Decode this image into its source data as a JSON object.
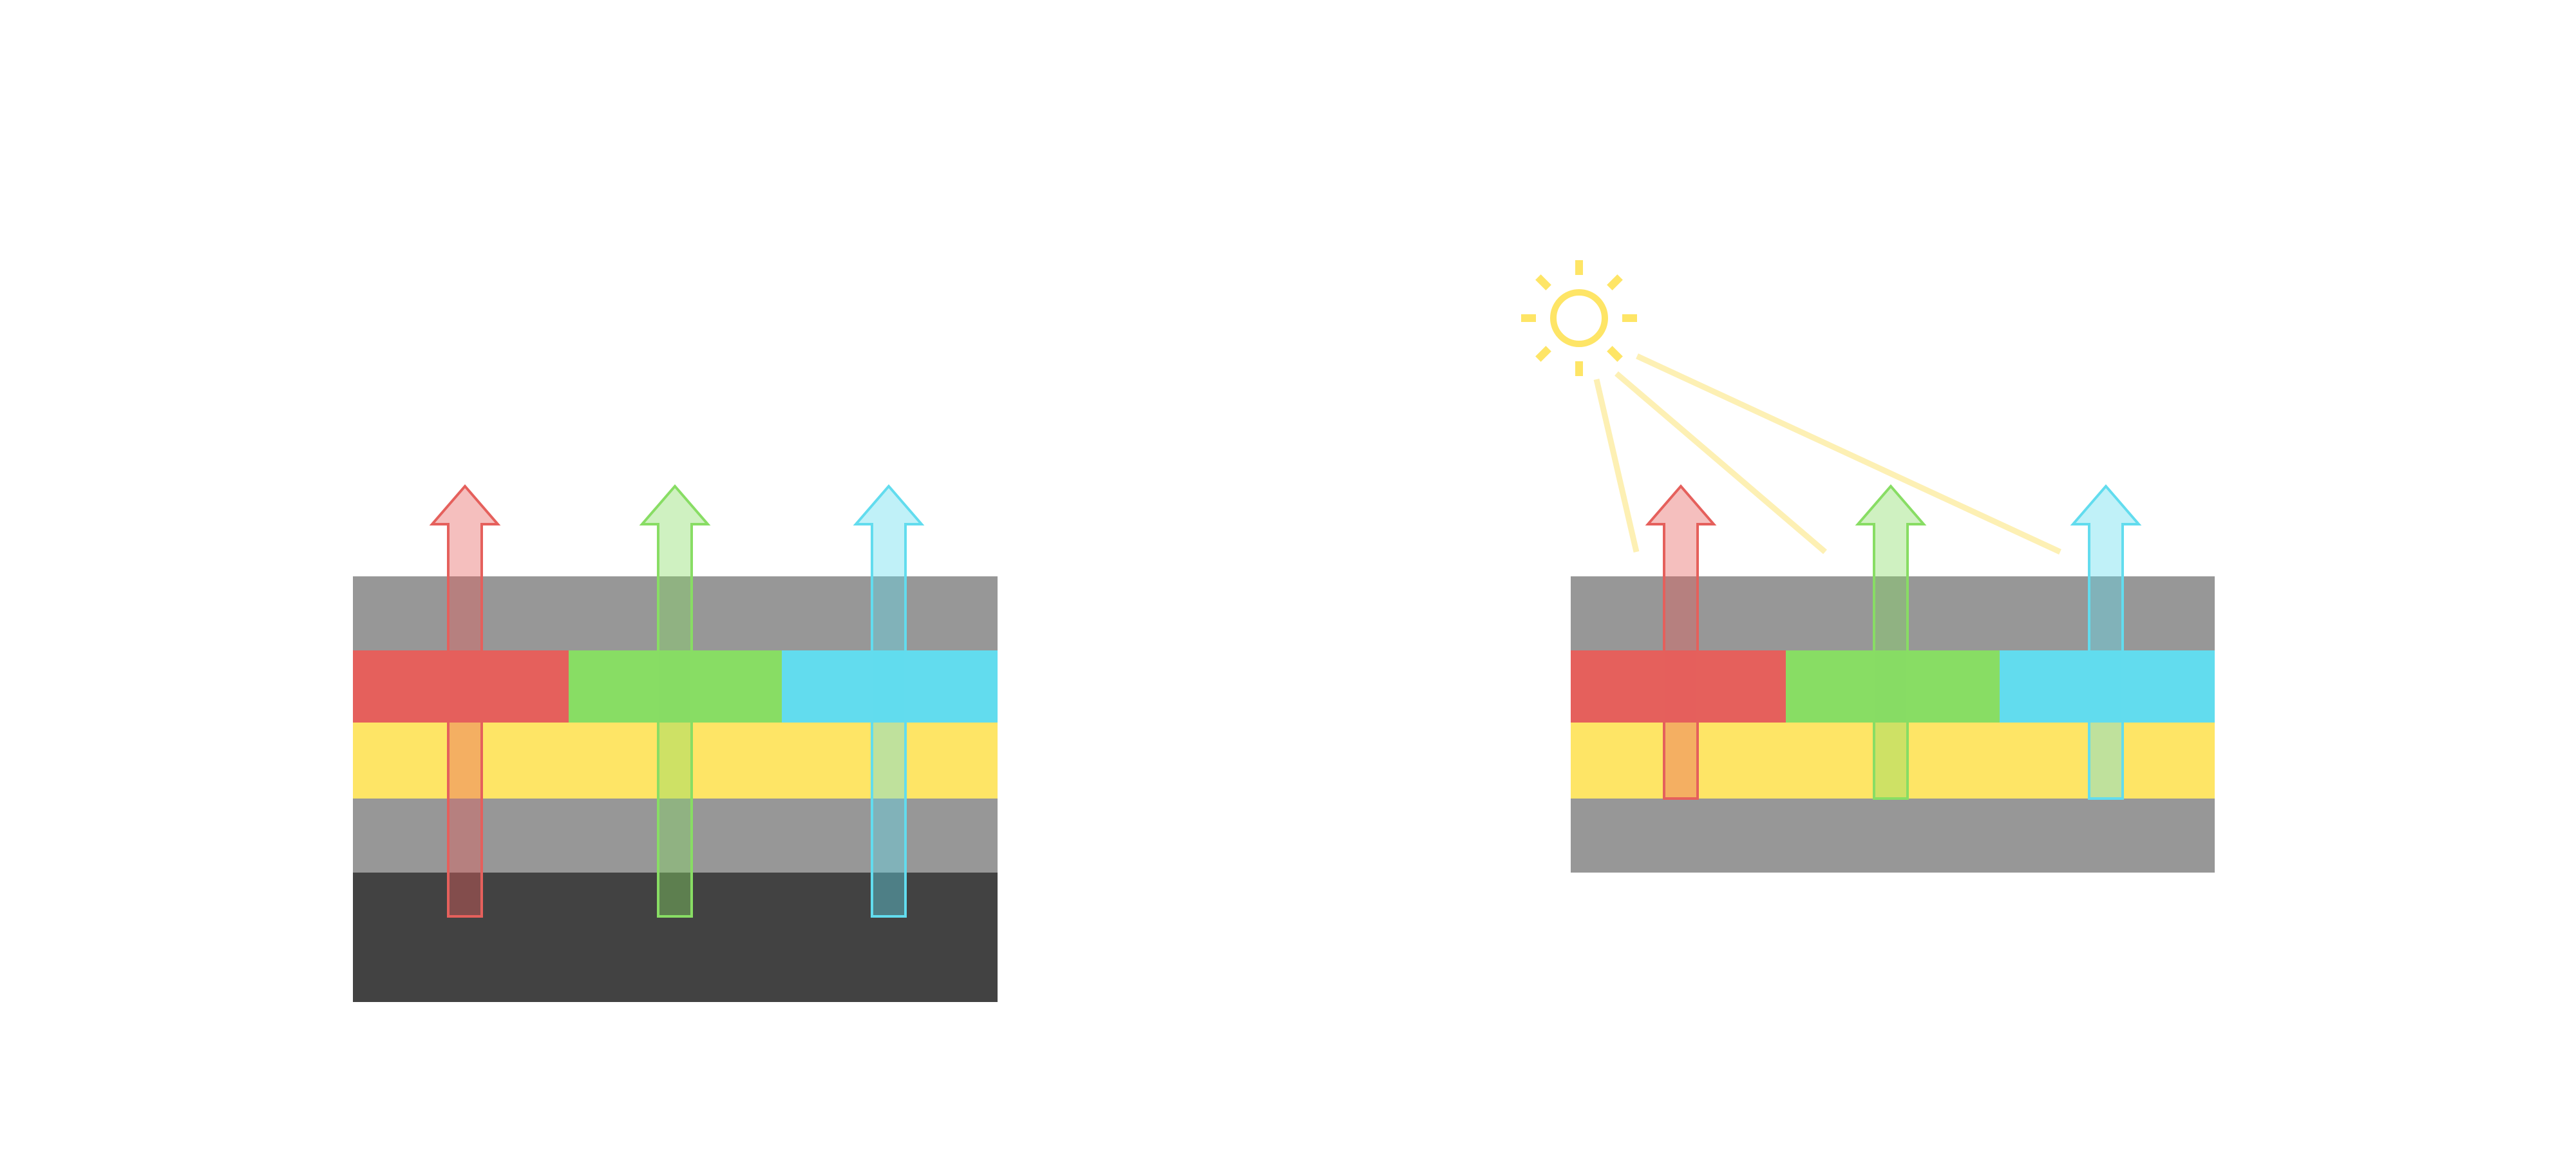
{
  "colors": {
    "gray_layer": "#979797",
    "dark_layer": "#424242",
    "yellow_layer": "#fee566",
    "red": "#e5605c",
    "green": "#88dd64",
    "cyan": "#62dcee",
    "sun": "#fee566",
    "sun_ray_light": "#fdf0b4"
  },
  "left_stack": {
    "layers": [
      "gray",
      "red-green-cyan",
      "yellow",
      "gray",
      "dark"
    ],
    "arrows": [
      "red",
      "green",
      "cyan"
    ]
  },
  "right_stack": {
    "layers": [
      "gray",
      "red-green-cyan",
      "yellow",
      "gray"
    ],
    "arrows": [
      "red",
      "green",
      "cyan"
    ],
    "light_source": "sun-icon",
    "light_rays": 3
  }
}
